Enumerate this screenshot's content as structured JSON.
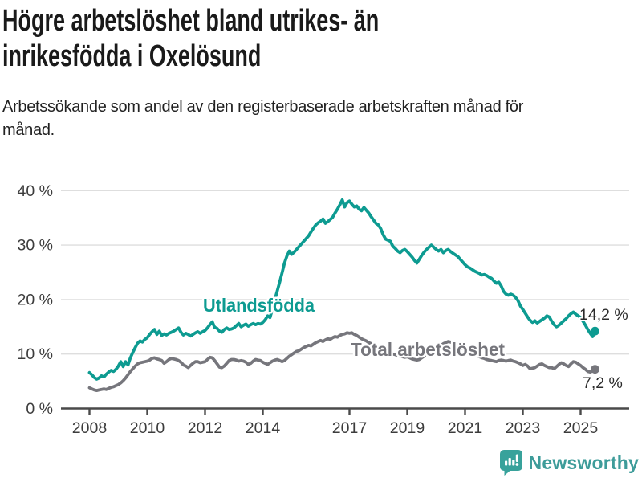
{
  "title_lines": [
    "Högre arbetslöshet bland utrikes- än",
    "inrikesfödda i Oxelösund"
  ],
  "subtitle": "Arbetssökande som andel av den registerbaserade arbetskraften månad för månad.",
  "footer": {
    "brand": "Newsworthy",
    "logo_icon": "newsworthy-speech-bubble-bar-chart-icon",
    "brand_color": "#3E9C9A",
    "icon_color": "#38A29B"
  },
  "colors": {
    "title": "#1a1a1a",
    "subtitle": "#222222",
    "axis": "#4a4a4a",
    "grid": "#dedede",
    "tick_text": "#3c3c3c"
  },
  "chart_data": {
    "type": "line",
    "x_unit": "year",
    "x_start": 2008.0,
    "x_step": 0.0833333,
    "xlim": [
      2007.0,
      2026.7
    ],
    "ylim": [
      0,
      40
    ],
    "grid": "horizontal",
    "x_ticks": [
      2008,
      2010,
      2012,
      2014,
      2017,
      2019,
      2021,
      2023,
      2025
    ],
    "x_tick_labels": [
      "2008",
      "2010",
      "2012",
      "2014",
      "2017",
      "2019",
      "2021",
      "2023",
      "2025"
    ],
    "y_ticks": [
      0,
      10,
      20,
      30,
      40
    ],
    "y_tick_labels": [
      "0 %",
      "10 %",
      "20 %",
      "30 %",
      "40 %"
    ],
    "series": [
      {
        "name": "Utlandsfödda",
        "color": "#0D9B91",
        "label_color": "#0D9B91",
        "end_label": "14,2 %",
        "end_value": 14.2,
        "values": [
          6.6,
          6.2,
          5.7,
          5.4,
          5.6,
          6.0,
          5.8,
          6.3,
          6.7,
          7.0,
          6.8,
          7.2,
          7.8,
          8.6,
          7.7,
          8.6,
          8.0,
          9.3,
          10.3,
          11.2,
          12.0,
          12.4,
          12.2,
          12.7,
          13.0,
          13.6,
          14.1,
          14.5,
          13.6,
          14.2,
          13.4,
          13.7,
          13.5,
          13.8,
          14.0,
          14.2,
          14.5,
          14.8,
          14.0,
          13.5,
          13.8,
          13.6,
          13.3,
          13.6,
          13.9,
          14.1,
          13.8,
          14.1,
          14.3,
          14.8,
          15.4,
          15.9,
          14.9,
          14.7,
          14.2,
          14.0,
          14.5,
          14.8,
          14.5,
          14.6,
          14.8,
          15.2,
          15.6,
          15.0,
          15.3,
          15.5,
          15.1,
          15.4,
          15.6,
          15.4,
          15.6,
          15.5,
          15.8,
          16.3,
          17.0,
          16.7,
          18.3,
          20.0,
          21.6,
          23.2,
          24.9,
          26.7,
          28.0,
          28.9,
          28.3,
          28.7,
          29.2,
          29.7,
          30.2,
          30.7,
          31.2,
          31.7,
          32.4,
          33.1,
          33.7,
          34.1,
          34.4,
          34.8,
          34.0,
          34.3,
          34.7,
          35.1,
          35.9,
          36.6,
          37.4,
          38.3,
          37.0,
          37.8,
          38.1,
          37.5,
          37.0,
          37.2,
          36.6,
          36.3,
          36.9,
          36.4,
          35.9,
          35.2,
          34.6,
          34.0,
          33.7,
          33.0,
          31.9,
          31.1,
          30.9,
          30.7,
          29.8,
          29.4,
          28.9,
          28.6,
          29.0,
          29.2,
          28.8,
          28.3,
          27.8,
          27.2,
          26.7,
          27.4,
          28.1,
          28.7,
          29.2,
          29.6,
          30.0,
          29.6,
          29.2,
          28.9,
          29.2,
          28.6,
          29.0,
          29.2,
          28.8,
          28.5,
          28.2,
          27.9,
          27.4,
          26.9,
          26.4,
          26.0,
          25.8,
          25.5,
          25.2,
          25.0,
          24.8,
          24.5,
          24.6,
          24.4,
          24.1,
          23.9,
          23.4,
          23.0,
          23.2,
          22.5,
          21.5,
          21.0,
          20.8,
          21.0,
          20.8,
          20.4,
          19.8,
          18.8,
          18.2,
          17.5,
          16.8,
          16.2,
          15.8,
          16.1,
          15.7,
          16.0,
          16.3,
          16.6,
          17.0,
          16.8,
          16.0,
          15.4,
          15.0,
          15.3,
          15.7,
          16.1,
          16.5,
          17.0,
          17.4,
          17.7,
          17.3,
          17.0,
          16.7,
          16.0,
          15.3,
          14.5,
          13.8,
          13.2,
          14.2
        ]
      },
      {
        "name": "Total arbetslöshet",
        "color": "#76767C",
        "label_color": "#76767C",
        "end_label": "7,2 %",
        "end_value": 7.2,
        "values": [
          3.8,
          3.6,
          3.4,
          3.3,
          3.4,
          3.5,
          3.6,
          3.5,
          3.7,
          3.9,
          4.0,
          4.2,
          4.4,
          4.7,
          5.1,
          5.6,
          6.2,
          6.8,
          7.3,
          7.8,
          8.2,
          8.4,
          8.5,
          8.6,
          8.7,
          8.9,
          9.2,
          9.3,
          9.1,
          9.0,
          8.8,
          8.3,
          8.6,
          9.0,
          9.2,
          9.1,
          9.0,
          8.8,
          8.5,
          8.0,
          7.8,
          7.5,
          7.9,
          8.3,
          8.6,
          8.6,
          8.4,
          8.5,
          8.6,
          9.0,
          9.4,
          9.3,
          8.8,
          8.2,
          7.6,
          7.5,
          7.8,
          8.3,
          8.8,
          9.0,
          9.0,
          8.9,
          8.7,
          8.8,
          8.7,
          8.5,
          8.1,
          8.3,
          8.7,
          9.0,
          8.9,
          8.8,
          8.5,
          8.3,
          8.1,
          8.4,
          8.7,
          8.9,
          9.0,
          8.8,
          8.6,
          8.8,
          9.2,
          9.6,
          9.9,
          10.2,
          10.5,
          10.6,
          10.9,
          11.2,
          11.4,
          11.6,
          11.5,
          11.8,
          12.1,
          12.3,
          12.5,
          12.3,
          12.6,
          12.8,
          12.7,
          13.0,
          13.2,
          13.1,
          13.4,
          13.6,
          13.7,
          13.9,
          13.8,
          13.9,
          13.6,
          13.4,
          13.1,
          12.8,
          12.6,
          12.4,
          12.1,
          11.9,
          11.6,
          11.4,
          11.1,
          10.9,
          10.7,
          10.5,
          10.3,
          10.2,
          10.0,
          9.9,
          9.7,
          9.6,
          9.5,
          9.4,
          9.5,
          9.3,
          9.1,
          9.0,
          8.9,
          9.0,
          9.3,
          9.6,
          10.0,
          10.3,
          10.6,
          10.9,
          11.2,
          11.4,
          11.6,
          11.9,
          12.1,
          12.3,
          12.2,
          12.0,
          11.8,
          11.6,
          11.3,
          11.0,
          10.7,
          10.5,
          10.3,
          10.1,
          9.9,
          9.7,
          9.5,
          9.3,
          9.2,
          9.0,
          8.9,
          8.8,
          8.7,
          8.6,
          8.8,
          8.9,
          8.8,
          8.7,
          8.8,
          8.9,
          8.7,
          8.6,
          8.4,
          8.2,
          7.9,
          8.1,
          7.8,
          7.3,
          7.4,
          7.5,
          7.8,
          8.1,
          8.2,
          7.9,
          7.7,
          7.5,
          7.5,
          7.3,
          7.7,
          8.1,
          8.4,
          8.2,
          7.9,
          7.7,
          8.2,
          8.6,
          8.5,
          8.2,
          7.9,
          7.5,
          7.2,
          6.8,
          6.7,
          6.9,
          7.2
        ]
      }
    ]
  }
}
